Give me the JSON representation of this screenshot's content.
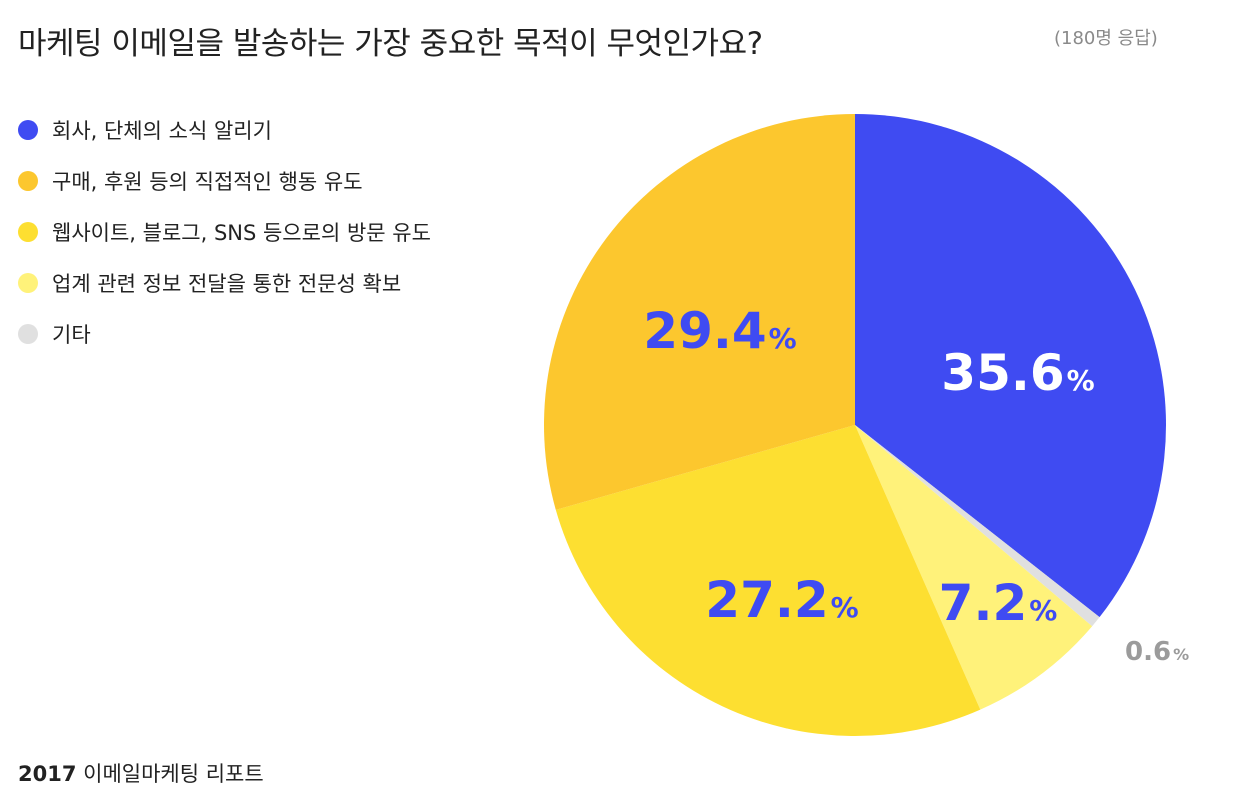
{
  "header": {
    "title": "마케팅 이메일을 발송하는 가장 중요한 목적이 무엇인가요?",
    "respondents": "(180명 응답)"
  },
  "footer": {
    "year": "2017",
    "name": "이메일마케팅 리포트"
  },
  "colors": {
    "accent": "#3f4bf2",
    "muted_label": "#9b9b9b"
  },
  "chart_data": {
    "type": "pie",
    "title": "마케팅 이메일을 발송하는 가장 중요한 목적이 무엇인가요?",
    "legend_position": "left",
    "start": "top",
    "direction": "clockwise",
    "slices": [
      {
        "label": "회사, 단체의 소식 알리기",
        "value": 35.6,
        "display": "35.6",
        "unit": "%",
        "color": "#3f4bf2",
        "label_color": "#ffffff"
      },
      {
        "label": "기타",
        "value": 0.6,
        "display": "0.6",
        "unit": "%",
        "color": "#e0e0e0",
        "label_color": "#9b9b9b"
      },
      {
        "label": "업계 관련 정보 전달을 통한 전문성 확보",
        "value": 7.2,
        "display": "7.2",
        "unit": "%",
        "color": "#fff27a",
        "label_color": "#3f4bf2"
      },
      {
        "label": "웹사이트, 블로그, SNS 등으로의 방문 유도",
        "value": 27.2,
        "display": "27.2",
        "unit": "%",
        "color": "#fddf31",
        "label_color": "#3f4bf2"
      },
      {
        "label": "구매, 후원 등의 직접적인 행동 유도",
        "value": 29.4,
        "display": "29.4",
        "unit": "%",
        "color": "#fcc72e",
        "label_color": "#3f4bf2"
      }
    ],
    "legend": [
      {
        "label": "회사, 단체의 소식 알리기",
        "color": "#3f4bf2"
      },
      {
        "label": "구매, 후원 등의 직접적인 행동 유도",
        "color": "#fcc72e"
      },
      {
        "label": "웹사이트, 블로그, SNS 등으로의 방문 유도",
        "color": "#fddf31"
      },
      {
        "label": "업계 관련 정보 전달을 통한 전문성 확보",
        "color": "#fff27a"
      },
      {
        "label": "기타",
        "color": "#e0e0e0"
      }
    ]
  }
}
